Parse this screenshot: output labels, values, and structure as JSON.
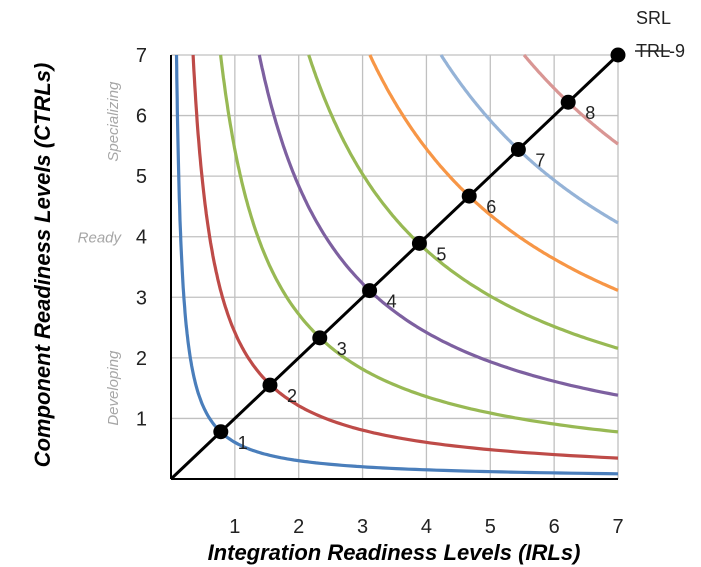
{
  "chart_data": {
    "type": "line",
    "xlabel": "Integration Readiness Levels (IRLs)",
    "ylabel": "Component Readiness Levels (CTRLs)",
    "xlim": [
      0,
      7
    ],
    "ylim": [
      0,
      7
    ],
    "x_ticks": [
      "1",
      "2",
      "3",
      "4",
      "5",
      "6",
      "7"
    ],
    "y_ticks": [
      "1",
      "2",
      "3",
      "4",
      "5",
      "6",
      "7"
    ],
    "grid": true,
    "band_labels": [
      {
        "text": "Developing",
        "y": 1.5
      },
      {
        "text": "Ready",
        "y": 4.0
      },
      {
        "text": "Specializing",
        "y": 5.9
      }
    ],
    "corner_labels": {
      "srl": "SRL",
      "trl": "TRL",
      "nine": "-9"
    },
    "diagonal": [
      [
        0,
        0
      ],
      [
        7,
        7
      ]
    ],
    "srl_points": [
      {
        "label": "1",
        "x": 0.78,
        "y": 0.78
      },
      {
        "label": "2",
        "x": 1.55,
        "y": 1.55
      },
      {
        "label": "3",
        "x": 2.33,
        "y": 2.33
      },
      {
        "label": "4",
        "x": 3.11,
        "y": 3.11
      },
      {
        "label": "5",
        "x": 3.89,
        "y": 3.89
      },
      {
        "label": "6",
        "x": 4.67,
        "y": 4.67
      },
      {
        "label": "7",
        "x": 5.44,
        "y": 5.44
      },
      {
        "label": "8",
        "x": 6.22,
        "y": 6.22
      },
      {
        "label": "",
        "x": 7.0,
        "y": 7.0
      }
    ],
    "series": [
      {
        "level": 1,
        "color": "#4a7ebb",
        "k": 0.605
      },
      {
        "level": 2,
        "color": "#be4b48",
        "k": 2.42
      },
      {
        "level": 3,
        "color": "#98b954",
        "k": 5.44
      },
      {
        "level": 4,
        "color": "#7d60a0",
        "k": 9.68
      },
      {
        "level": 5,
        "color": "#98b954",
        "k": 15.1
      },
      {
        "level": 6,
        "color": "#f79646",
        "k": 21.8
      },
      {
        "level": 7,
        "color": "#95b3d7",
        "k": 29.6
      },
      {
        "level": 8,
        "color": "#d99694",
        "k": 38.7
      }
    ],
    "diagonal_color": "#000000",
    "grid_color": "#c0c0c0"
  }
}
